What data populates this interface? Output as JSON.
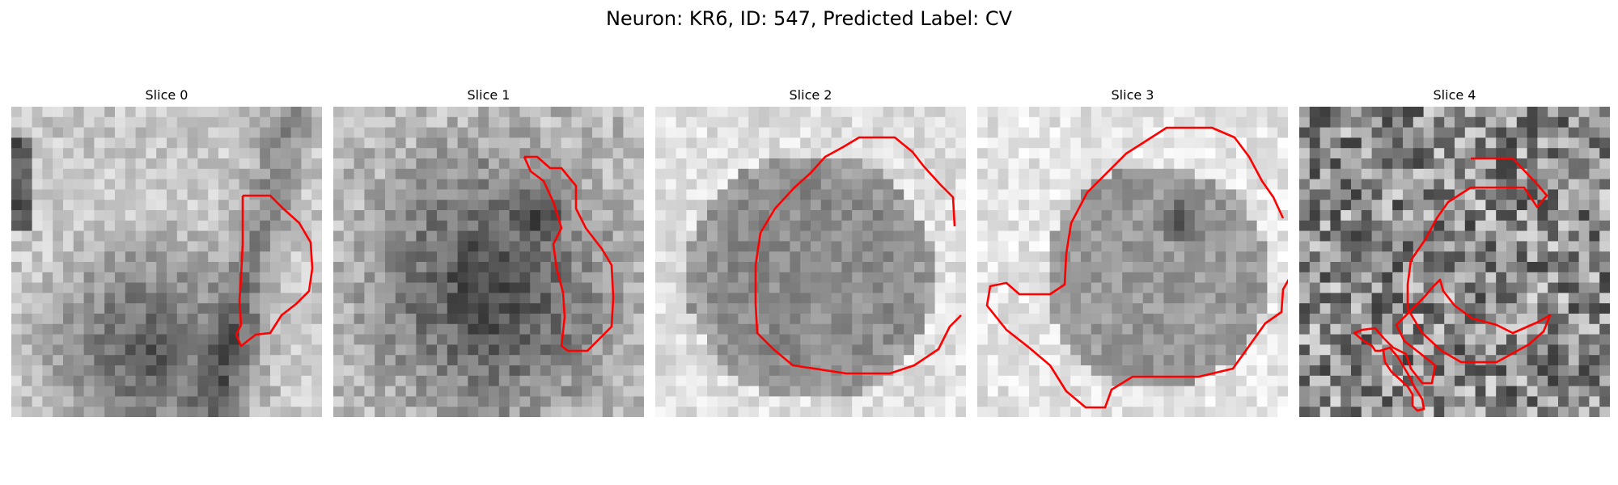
{
  "figure": {
    "title": "Neuron: KR6, ID: 547, Predicted Label: CV"
  },
  "panels": [
    {
      "title": "Slice 0",
      "colormap": "grayscale",
      "contour_color": "#ff0000"
    },
    {
      "title": "Slice 1",
      "colormap": "grayscale",
      "contour_color": "#ff0000"
    },
    {
      "title": "Slice 2",
      "colormap": "grayscale",
      "contour_color": "#ff0000"
    },
    {
      "title": "Slice 3",
      "colormap": "grayscale",
      "contour_color": "#ff0000"
    },
    {
      "title": "Slice 4",
      "colormap": "grayscale",
      "contour_color": "#ff0000"
    }
  ]
}
